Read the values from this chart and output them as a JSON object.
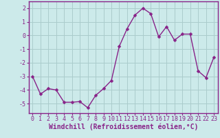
{
  "x": [
    0,
    1,
    2,
    3,
    4,
    5,
    6,
    7,
    8,
    9,
    10,
    11,
    12,
    13,
    14,
    15,
    16,
    17,
    18,
    19,
    20,
    21,
    22,
    23
  ],
  "y": [
    -3.0,
    -4.3,
    -3.9,
    -4.0,
    -4.9,
    -4.9,
    -4.85,
    -5.3,
    -4.4,
    -3.9,
    -3.3,
    -0.8,
    0.5,
    1.5,
    2.0,
    1.6,
    -0.1,
    0.65,
    -0.35,
    0.1,
    0.1,
    -2.6,
    -3.1,
    -1.6
  ],
  "line_color": "#882288",
  "marker": "D",
  "markersize": 2.5,
  "linewidth": 1.0,
  "background_color": "#cceaea",
  "grid_color": "#aacccc",
  "xlabel": "Windchill (Refroidissement éolien,°C)",
  "xlabel_fontsize": 7,
  "label_color": "#882288",
  "yticks": [
    -5,
    -4,
    -3,
    -2,
    -1,
    0,
    1,
    2
  ],
  "xticks": [
    0,
    1,
    2,
    3,
    4,
    5,
    6,
    7,
    8,
    9,
    10,
    11,
    12,
    13,
    14,
    15,
    16,
    17,
    18,
    19,
    20,
    21,
    22,
    23
  ],
  "xlim": [
    -0.5,
    23.5
  ],
  "ylim": [
    -5.7,
    2.5
  ],
  "tick_fontsize": 6,
  "spine_color": "#882288",
  "bottom_spine_color": "#882288"
}
